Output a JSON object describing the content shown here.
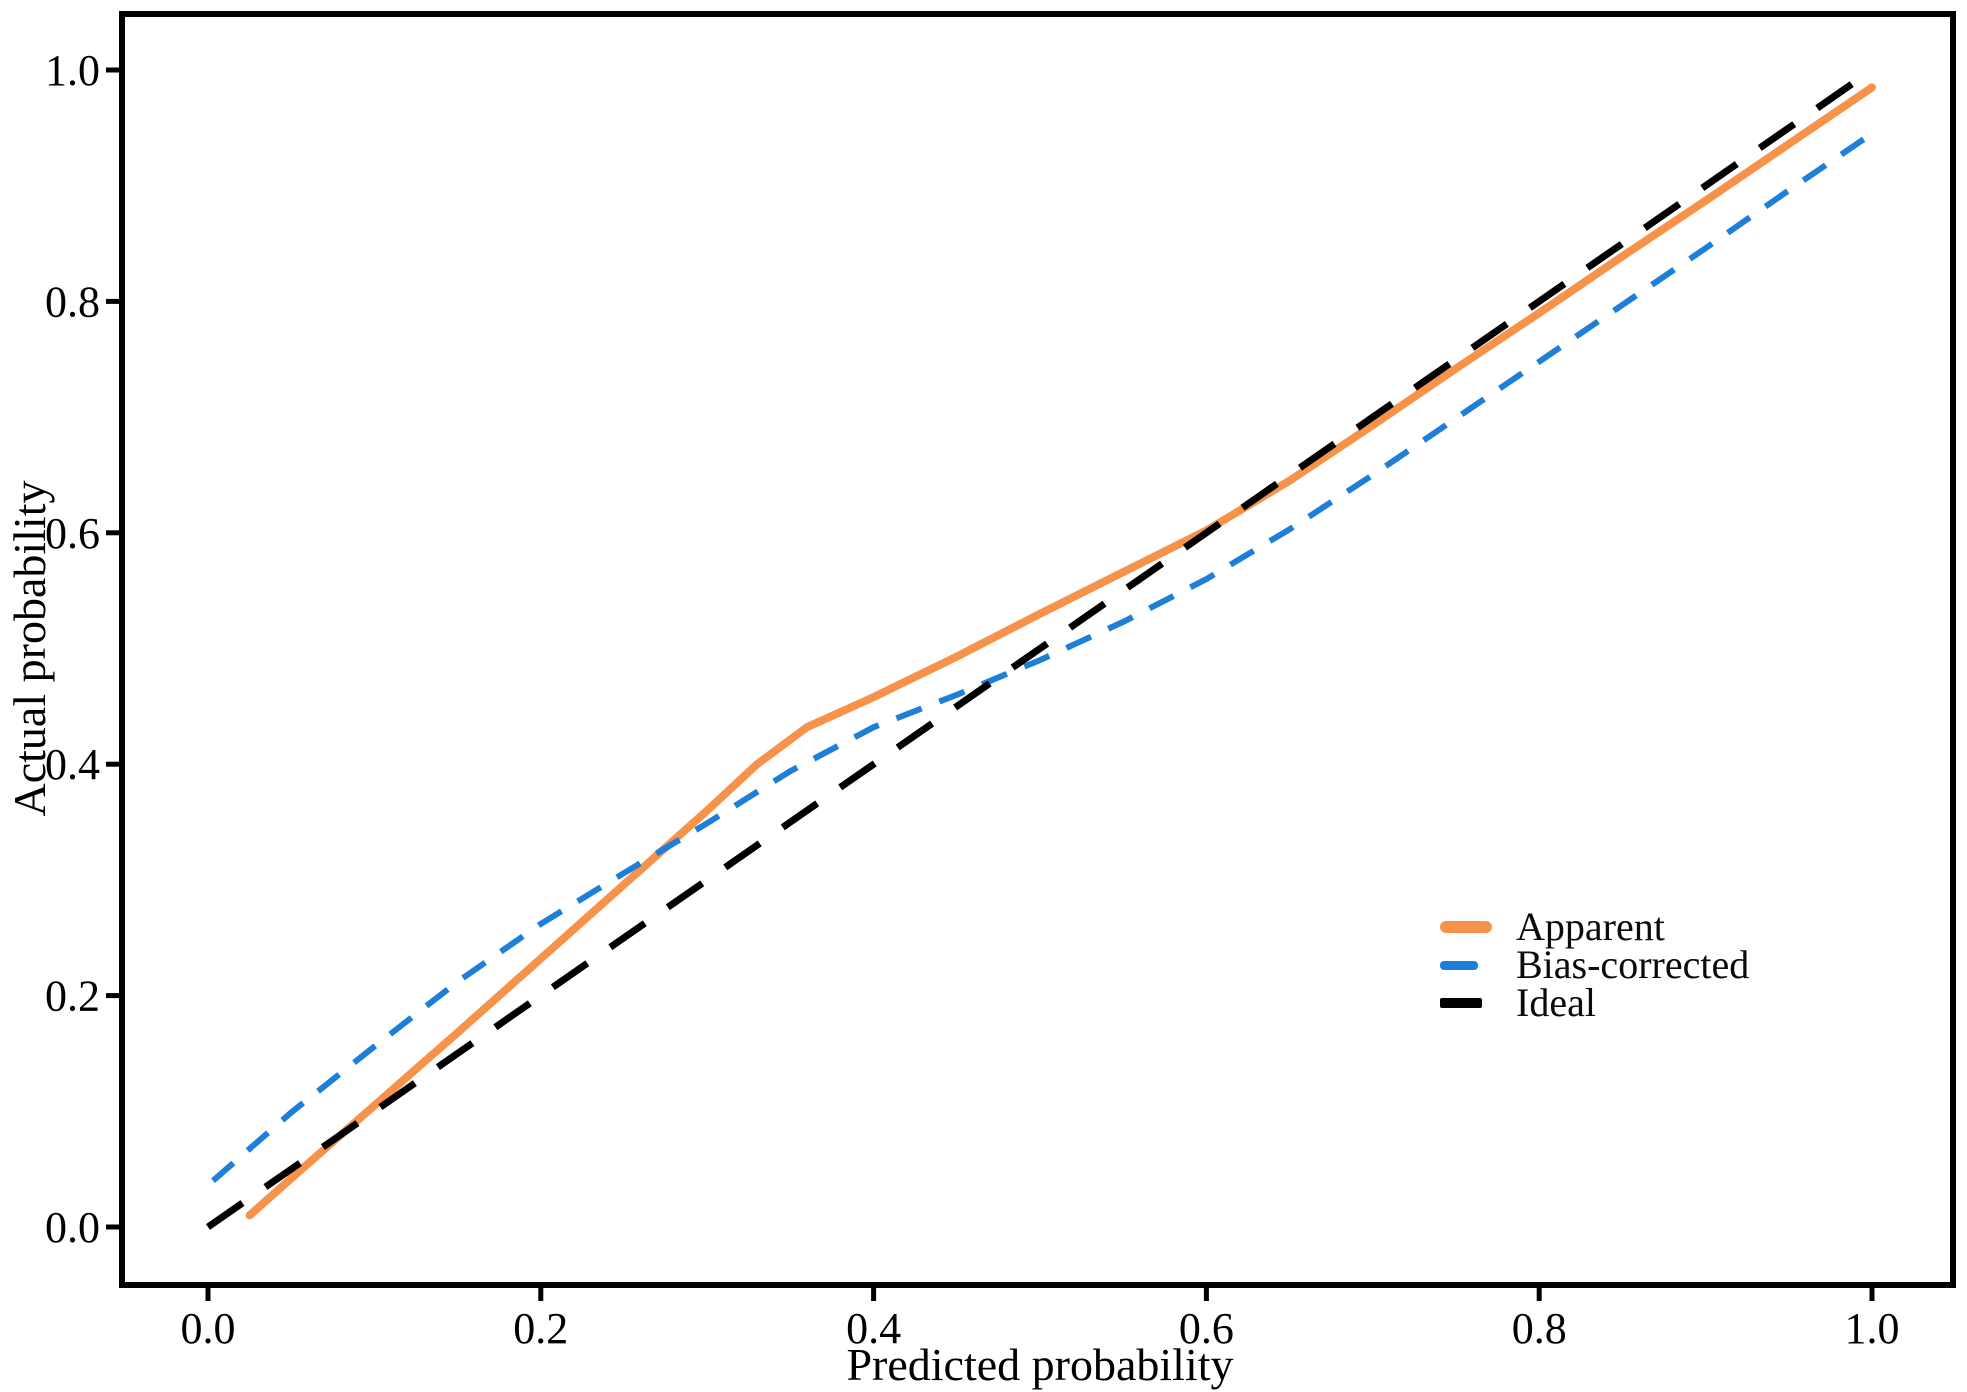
{
  "figure": {
    "background": "#ffffff",
    "axis_color": "#000000"
  },
  "chart_data": {
    "type": "line",
    "title": "",
    "xlabel": "Predicted probability",
    "ylabel": "Actual probability",
    "xlim": [
      0,
      1
    ],
    "ylim": [
      0,
      1
    ],
    "grid": false,
    "legend_position": "right-center",
    "x_ticks": [
      0.0,
      0.2,
      0.4,
      0.6,
      0.8,
      1.0
    ],
    "y_ticks": [
      0.0,
      0.2,
      0.4,
      0.6,
      0.8,
      1.0
    ],
    "x_tick_labels": [
      "0.0",
      "0.2",
      "0.4",
      "0.6",
      "0.8",
      "1.0"
    ],
    "y_tick_labels": [
      "0.0",
      "0.2",
      "0.4",
      "0.6",
      "0.8",
      "1.0"
    ],
    "series": [
      {
        "name": "Apparent",
        "color": "#F6924A",
        "style": "solid",
        "line_width": 8,
        "x": [
          0.025,
          0.05,
          0.1,
          0.15,
          0.2,
          0.25,
          0.3,
          0.33,
          0.36,
          0.4,
          0.45,
          0.5,
          0.55,
          0.6,
          0.65,
          0.7,
          0.75,
          0.8,
          0.85,
          0.9,
          0.95,
          1.0
        ],
        "y": [
          0.01,
          0.042,
          0.105,
          0.168,
          0.232,
          0.296,
          0.36,
          0.4,
          0.432,
          0.458,
          0.493,
          0.53,
          0.566,
          0.602,
          0.645,
          0.693,
          0.742,
          0.79,
          0.839,
          0.887,
          0.936,
          0.985
        ]
      },
      {
        "name": "Bias-corrected",
        "color": "#1E7FD9",
        "style": "dashed",
        "line_width": 6,
        "dash": [
          27,
          19
        ],
        "x": [
          0.003,
          0.05,
          0.1,
          0.15,
          0.2,
          0.25,
          0.3,
          0.35,
          0.4,
          0.45,
          0.5,
          0.55,
          0.6,
          0.65,
          0.7,
          0.75,
          0.8,
          0.85,
          0.9,
          0.95,
          1.0
        ],
        "y": [
          0.04,
          0.099,
          0.156,
          0.212,
          0.262,
          0.306,
          0.349,
          0.394,
          0.432,
          0.46,
          0.49,
          0.523,
          0.56,
          0.603,
          0.65,
          0.699,
          0.748,
          0.797,
          0.846,
          0.896,
          0.945
        ]
      },
      {
        "name": "Ideal",
        "color": "#000000",
        "style": "dashed",
        "line_width": 7,
        "dash": [
          42,
          28
        ],
        "x": [
          0.0,
          1.0
        ],
        "y": [
          0.0,
          1.0
        ]
      }
    ]
  }
}
